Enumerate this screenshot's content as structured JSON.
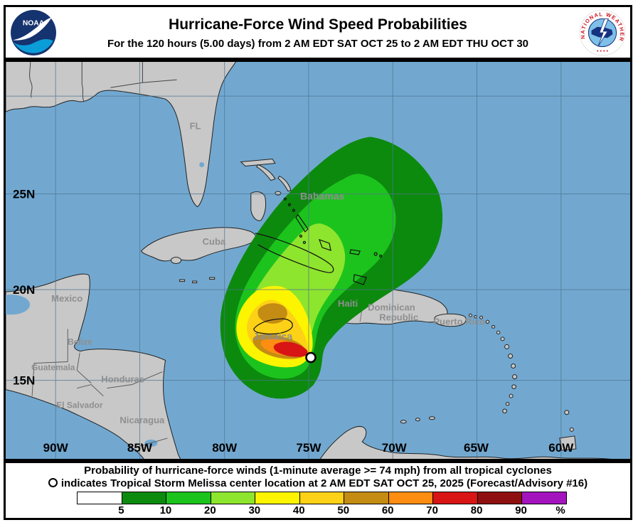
{
  "header": {
    "title": "Hurricane-Force Wind Speed Probabilities",
    "subtitle": "For the 120 hours (5.00 days) from 2 AM EDT SAT OCT 25 to 2 AM EDT THU OCT 30",
    "noaa_text": "NOAA",
    "nws_text": "NATIONAL WEATHER SERVICE"
  },
  "map": {
    "ocean_color": "#72a8d0",
    "land_color": "#c8c8c8",
    "gridline_color": "#4f7490",
    "lat": [
      "25N",
      "20N",
      "15N"
    ],
    "lon": [
      "90W",
      "85W",
      "80W",
      "75W",
      "70W",
      "65W",
      "60W"
    ],
    "labels": {
      "fl": "FL",
      "cuba": "Cuba",
      "mexico": "Mexico",
      "belize": "Belize",
      "guatemala": "Guatemala",
      "honduras": "Honduras",
      "el_salvador": "El Salvador",
      "nicaragua": "Nicaragua",
      "bahamas": "Bahamas",
      "jamaica": "Jamaica",
      "haiti": "Haiti",
      "dominican": "Dominican",
      "republic": "Republic",
      "puerto_rico": "Puerto Rico"
    }
  },
  "legend": {
    "line1": "Probability of hurricane-force winds (1-minute average >= 74 mph) from all tropical cyclones",
    "line2": "indicates Tropical Storm Melissa center location at 2 AM EDT SAT OCT 25, 2025 (Forecast/Advisory #16)",
    "scale_labels": [
      "5",
      "10",
      "20",
      "30",
      "40",
      "50",
      "60",
      "70",
      "80",
      "90",
      "%"
    ],
    "scale_colors": [
      "#ffffff",
      "#0c8a0e",
      "#1dc31d",
      "#8ee52d",
      "#fdf400",
      "#fdd116",
      "#c48c12",
      "#fe8d12",
      "#d81414",
      "#8e1010",
      "#a414bd"
    ]
  },
  "chart_data": {
    "type": "heatmap",
    "title": "Hurricane-Force Wind Speed Probabilities",
    "subtitle": "For the 120 hours (5.00 days) from 2 AM EDT SAT OCT 25 to 2 AM EDT THU OCT 30",
    "legend_position": "bottom",
    "probability_levels_percent": [
      5,
      10,
      20,
      30,
      40,
      50,
      60,
      70,
      80,
      90
    ],
    "level_colors": [
      "#0c8a0e",
      "#1dc31d",
      "#8ee52d",
      "#fdf400",
      "#fdd116",
      "#c48c12",
      "#fe8d12",
      "#d81414",
      "#8e1010",
      "#a414bd"
    ],
    "max_probability_shown_percent": 70,
    "max_probability_location": "just southeast of Jamaica",
    "storm_center_marker": "open white circle southeast of Jamaica near 75W, 17N",
    "x_axis_ticks": [
      "90W",
      "85W",
      "80W",
      "75W",
      "70W",
      "65W",
      "60W"
    ],
    "y_axis_ticks": [
      "25N",
      "20N",
      "15N"
    ],
    "grid": true
  }
}
